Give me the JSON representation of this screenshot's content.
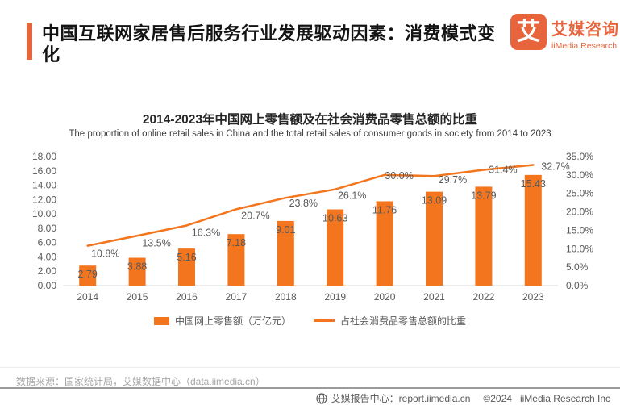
{
  "colors": {
    "brand_orange": "#E8643C",
    "chart_orange": "#F3761F",
    "data_label_gray": "#595959",
    "axis_line_gray": "#D9D9D9"
  },
  "header": {
    "title": "中国互联网家居售后服务行业发展驱动因素：消费模式变化",
    "logo": {
      "glyph": "艾",
      "name_cn": "艾媒咨询",
      "name_en": "iiMedia Research"
    }
  },
  "chart_data": {
    "type": "bar+line",
    "title": "2014-2023年中国网上零售额及在社会消费品零售总额的比重",
    "subtitle": "The proportion of online retail sales in China and the total retail sales of consumer goods in society from 2014 to 2023",
    "categories": [
      "2014",
      "2015",
      "2016",
      "2017",
      "2018",
      "2019",
      "2020",
      "2021",
      "2022",
      "2023"
    ],
    "series": [
      {
        "name": "中国网上零售额（万亿元）",
        "type": "bar",
        "axis": "left",
        "color": "#F3761F",
        "values": [
          2.79,
          3.88,
          5.16,
          7.18,
          9.01,
          10.63,
          11.76,
          13.09,
          13.79,
          15.43
        ],
        "labels": [
          "2.79",
          "3.88",
          "5.16",
          "7.18",
          "9.01",
          "10.63",
          "11.76",
          "13.09",
          "13.79",
          "15.43"
        ]
      },
      {
        "name": "占社会消费品零售总额的比重",
        "type": "line",
        "axis": "right",
        "color": "#F3761F",
        "values": [
          10.8,
          13.5,
          16.3,
          20.7,
          23.8,
          26.1,
          30.0,
          29.7,
          31.4,
          32.7
        ],
        "labels": [
          "10.8%",
          "13.5%",
          "16.3%",
          "20.7%",
          "23.8%",
          "26.1%",
          "30.0%",
          "29.7%",
          "31.4%",
          "32.7%"
        ]
      }
    ],
    "left_axis": {
      "min": 0,
      "max": 18,
      "step": 2,
      "tick_format": "0.00"
    },
    "right_axis": {
      "min": 0,
      "max": 35,
      "step": 5,
      "tick_format": "0.0%"
    },
    "grid": false,
    "legend_position": "bottom"
  },
  "footer": {
    "source": "数据来源：国家统计局，艾媒数据中心（data.iimedia.cn）",
    "report_center": "艾媒报告中心：report.iimedia.cn",
    "copyright": "©2024",
    "company": "iiMedia Research Inc"
  }
}
